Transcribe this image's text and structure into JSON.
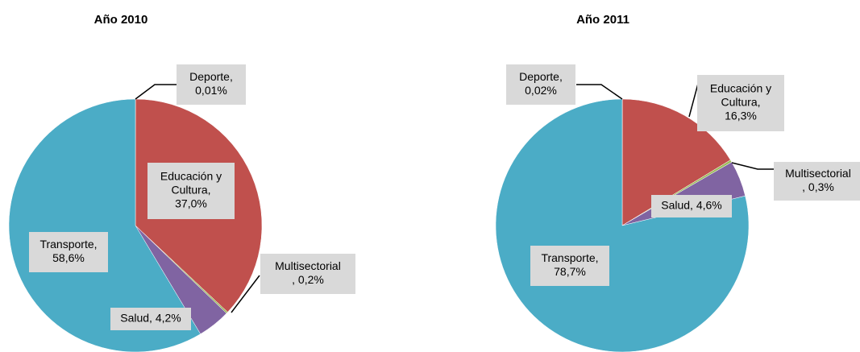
{
  "chart_data": [
    {
      "type": "pie",
      "title": "Año 2010",
      "values": [
        0.01,
        37.0,
        0.2,
        4.2,
        58.6
      ],
      "value_labels": [
        "Deporte,\n0,01%",
        "Educación y\nCultura,\n37,0%",
        "Multisectorial\n, 0,2%",
        "Salud, 4,2%",
        "Transporte,\n58,6%"
      ],
      "colors": [
        "#4f81bd",
        "#c0504d",
        "#9bbb59",
        "#8064a2",
        "#4bacc6"
      ]
    },
    {
      "type": "pie",
      "title": "Año 2011",
      "values": [
        0.02,
        16.3,
        0.3,
        4.6,
        78.7
      ],
      "value_labels": [
        "Deporte,\n0,02%",
        "Educación y\nCultura,\n16,3%",
        "Multisectorial\n, 0,3%",
        "Salud, 4,6%",
        "Transporte,\n78,7%"
      ],
      "colors": [
        "#4f81bd",
        "#c0504d",
        "#9bbb59",
        "#8064a2",
        "#4bacc6"
      ]
    }
  ]
}
